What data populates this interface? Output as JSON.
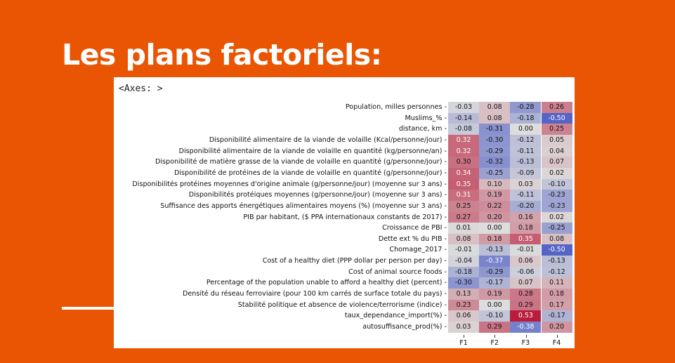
{
  "slide": {
    "title": "Les plans factoriels:",
    "accent_color": "#ea5504"
  },
  "figure": {
    "axes_label": "<Axes: >"
  },
  "chart_data": {
    "type": "heatmap",
    "columns": [
      "F1",
      "F2",
      "F3",
      "F4"
    ],
    "rows": [
      "Population, milles personnes",
      "Muslims_%",
      "distance, km",
      "Disponibilité alimentaire de la viande de volaille (Kcal/personne/jour)",
      "Disponibilité alimentaire de la viande de volaille en quantité  (kg/personne/an)",
      "Disponibilité de matière grasse de la viande de volaille en quantité (g/personne/jour)",
      "Disponibilité de protéines de la viande de volaille en quantité (g/personne/jour)",
      "Disponibilités protéines moyennes d'origine animale (g/personne/jour) (moyenne sur 3 ans)",
      "Disponibilités protéiques moyennes (g/personne/jour) (moyenne sur 3 ans)",
      "Suffisance des apports énergétiques alimentaires moyens (%) (moyenne sur 3 ans)",
      "PIB par habitant, ($ PPA internationaux constants de 2017)",
      "Croissance de PBI",
      "Dette ext % du PIB",
      "Chomage_2017",
      "Cost of a healthy diet (PPP dollar per person per day)",
      "Cost of animal source foods",
      "Percentage of the population unable to afford a healthy diet (percent)",
      "Densité du réseau ferroviaire (pour 100 km carrés de surface totale du pays)",
      "Stabilité politique et absence de violence/terrorisme (indice)",
      "taux_dependance_import(%)",
      "autosuffisance_prod(%)"
    ],
    "values": [
      [
        -0.03,
        0.08,
        -0.28,
        0.26
      ],
      [
        -0.14,
        0.08,
        -0.18,
        -0.5
      ],
      [
        -0.08,
        -0.31,
        0.0,
        0.25
      ],
      [
        0.32,
        -0.3,
        -0.12,
        0.05
      ],
      [
        0.32,
        -0.29,
        -0.11,
        0.04
      ],
      [
        0.3,
        -0.32,
        -0.13,
        0.07
      ],
      [
        0.34,
        -0.25,
        -0.09,
        0.02
      ],
      [
        0.35,
        0.1,
        0.03,
        -0.1
      ],
      [
        0.31,
        0.19,
        -0.11,
        -0.23
      ],
      [
        0.25,
        0.22,
        -0.2,
        -0.23
      ],
      [
        0.27,
        0.2,
        0.16,
        0.02
      ],
      [
        0.01,
        0.0,
        0.18,
        -0.25
      ],
      [
        0.08,
        0.18,
        0.35,
        0.08
      ],
      [
        -0.01,
        -0.13,
        -0.01,
        -0.5
      ],
      [
        -0.04,
        -0.37,
        0.06,
        -0.13
      ],
      [
        -0.18,
        -0.29,
        -0.06,
        -0.12
      ],
      [
        -0.3,
        -0.17,
        0.07,
        0.11
      ],
      [
        0.13,
        0.19,
        0.28,
        0.18
      ],
      [
        0.23,
        0.0,
        0.29,
        0.17
      ],
      [
        0.06,
        -0.1,
        0.53,
        -0.17
      ],
      [
        0.03,
        0.29,
        -0.38,
        0.2
      ]
    ],
    "value_format": "2 decimals",
    "color_scale": {
      "colormap": "coolwarm",
      "min": -0.6,
      "max": 0.6,
      "negative_color": "#3b4cc0",
      "neutral_color": "#dddddd",
      "positive_color": "#b40426"
    },
    "colorbar": false
  }
}
